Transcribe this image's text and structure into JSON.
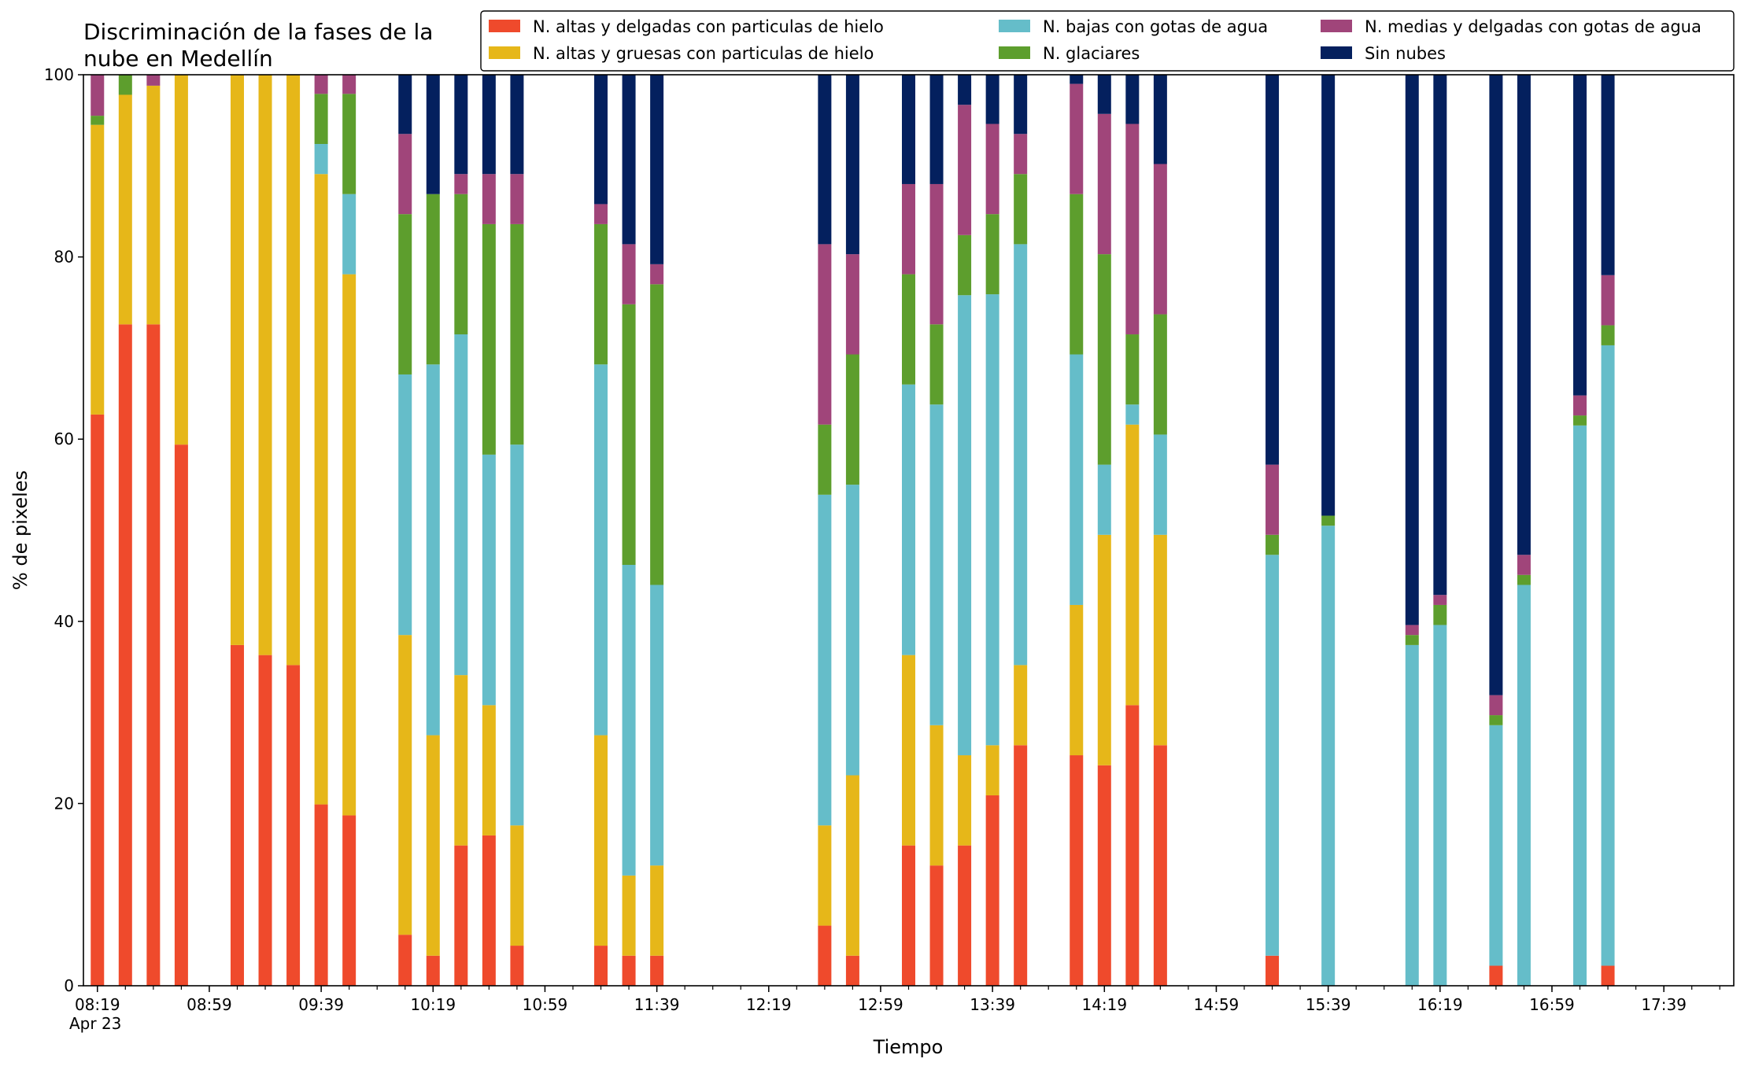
{
  "chart_data": {
    "type": "bar",
    "stacked": true,
    "title_lines": [
      "Discriminación de la fases de la",
      "nube en Medellín"
    ],
    "xlabel": "Tiempo",
    "ylabel": "% de pixeles",
    "ylim": [
      0,
      100
    ],
    "yticks": [
      0,
      20,
      40,
      60,
      80,
      100
    ],
    "x_range": [
      "08:14",
      "18:04"
    ],
    "x_major_ticks": [
      "08:19",
      "08:59",
      "09:39",
      "10:19",
      "10:59",
      "11:39",
      "12:19",
      "12:59",
      "13:39",
      "14:19",
      "14:59",
      "15:39",
      "16:19",
      "16:59",
      "17:39"
    ],
    "x_minor_step_minutes": 10,
    "x_date_label": "Apr 23",
    "grid": false,
    "legend_position": "top-right",
    "legend_columns": 3,
    "series": [
      {
        "name": "N. altas y delgadas con particulas de hielo",
        "color": "#ef4a2c"
      },
      {
        "name": "N. altas y gruesas con particulas de hielo",
        "color": "#e6b719"
      },
      {
        "name": "N. bajas con gotas de agua",
        "color": "#65bdc9"
      },
      {
        "name": "N. glaciares",
        "color": "#5d9e2d"
      },
      {
        "name": "N. medias y delgadas con gotas de agua",
        "color": "#a0457a"
      },
      {
        "name": "Sin nubes",
        "color": "#04205e"
      }
    ],
    "bars": [
      {
        "time": "08:19",
        "values": [
          62.7,
          31.8,
          0,
          1.0,
          4.5,
          0
        ]
      },
      {
        "time": "08:29",
        "values": [
          72.6,
          25.2,
          0,
          2.2,
          0,
          0
        ]
      },
      {
        "time": "08:39",
        "values": [
          72.6,
          26.2,
          0,
          0,
          1.2,
          0
        ]
      },
      {
        "time": "08:49",
        "values": [
          59.4,
          40.6,
          0,
          0,
          0,
          0
        ]
      },
      {
        "time": "09:09",
        "values": [
          37.4,
          62.6,
          0,
          0,
          0,
          0
        ]
      },
      {
        "time": "09:19",
        "values": [
          36.3,
          63.7,
          0,
          0,
          0,
          0
        ]
      },
      {
        "time": "09:29",
        "values": [
          35.2,
          64.8,
          0,
          0,
          0,
          0
        ]
      },
      {
        "time": "09:39",
        "values": [
          19.9,
          69.2,
          3.3,
          5.5,
          2.1,
          0
        ]
      },
      {
        "time": "09:49",
        "values": [
          18.7,
          59.4,
          8.8,
          11.0,
          2.1,
          0
        ]
      },
      {
        "time": "10:09",
        "values": [
          5.6,
          32.9,
          28.6,
          17.6,
          8.8,
          6.5
        ]
      },
      {
        "time": "10:19",
        "values": [
          3.3,
          24.2,
          40.7,
          18.7,
          0,
          13.1
        ]
      },
      {
        "time": "10:29",
        "values": [
          15.4,
          18.7,
          37.4,
          15.4,
          2.2,
          10.9
        ]
      },
      {
        "time": "10:39",
        "values": [
          16.5,
          14.3,
          27.5,
          25.3,
          5.5,
          10.9
        ]
      },
      {
        "time": "10:49",
        "values": [
          4.4,
          13.2,
          41.8,
          24.2,
          5.5,
          10.9
        ]
      },
      {
        "time": "11:19",
        "values": [
          4.4,
          23.1,
          40.7,
          15.4,
          2.2,
          14.2
        ]
      },
      {
        "time": "11:29",
        "values": [
          3.3,
          8.8,
          34.1,
          28.6,
          6.6,
          18.6
        ]
      },
      {
        "time": "11:39",
        "values": [
          3.3,
          9.9,
          30.8,
          33.0,
          2.2,
          20.8
        ]
      },
      {
        "time": "12:39",
        "values": [
          6.6,
          11.0,
          36.3,
          7.7,
          19.8,
          18.6
        ]
      },
      {
        "time": "12:49",
        "values": [
          3.3,
          19.8,
          31.9,
          14.3,
          11.0,
          19.7
        ]
      },
      {
        "time": "13:09",
        "values": [
          15.4,
          20.9,
          29.7,
          12.1,
          9.9,
          12.0
        ]
      },
      {
        "time": "13:19",
        "values": [
          13.2,
          15.4,
          35.2,
          8.8,
          15.4,
          12.0
        ]
      },
      {
        "time": "13:29",
        "values": [
          15.4,
          9.9,
          50.5,
          6.6,
          14.3,
          3.3
        ]
      },
      {
        "time": "13:39",
        "values": [
          20.9,
          5.5,
          49.5,
          8.8,
          9.9,
          5.4
        ]
      },
      {
        "time": "13:49",
        "values": [
          26.4,
          8.8,
          46.2,
          7.7,
          4.4,
          6.5
        ]
      },
      {
        "time": "14:09",
        "values": [
          25.3,
          16.5,
          27.5,
          17.6,
          12.1,
          1.0
        ]
      },
      {
        "time": "14:19",
        "values": [
          24.2,
          25.3,
          7.7,
          23.1,
          15.4,
          4.3
        ]
      },
      {
        "time": "14:29",
        "values": [
          30.8,
          30.8,
          2.2,
          7.7,
          23.1,
          5.4
        ]
      },
      {
        "time": "14:39",
        "values": [
          26.4,
          23.1,
          11.0,
          13.2,
          16.5,
          9.8
        ]
      },
      {
        "time": "15:19",
        "values": [
          3.3,
          0,
          44.0,
          2.2,
          7.7,
          42.8
        ]
      },
      {
        "time": "15:39",
        "values": [
          0,
          0,
          50.5,
          1.1,
          0,
          48.4
        ]
      },
      {
        "time": "16:09",
        "values": [
          0,
          0,
          37.4,
          1.1,
          1.1,
          60.4
        ]
      },
      {
        "time": "16:19",
        "values": [
          0,
          0,
          39.6,
          2.2,
          1.1,
          57.1
        ]
      },
      {
        "time": "16:39",
        "values": [
          2.2,
          0,
          26.4,
          1.1,
          2.2,
          68.1
        ]
      },
      {
        "time": "16:49",
        "values": [
          0,
          0,
          44.0,
          1.1,
          2.2,
          52.7
        ]
      },
      {
        "time": "17:09",
        "values": [
          0,
          0,
          61.5,
          1.1,
          2.2,
          35.2
        ]
      },
      {
        "time": "17:19",
        "values": [
          2.2,
          0,
          68.1,
          2.2,
          5.5,
          22.0
        ]
      }
    ]
  }
}
